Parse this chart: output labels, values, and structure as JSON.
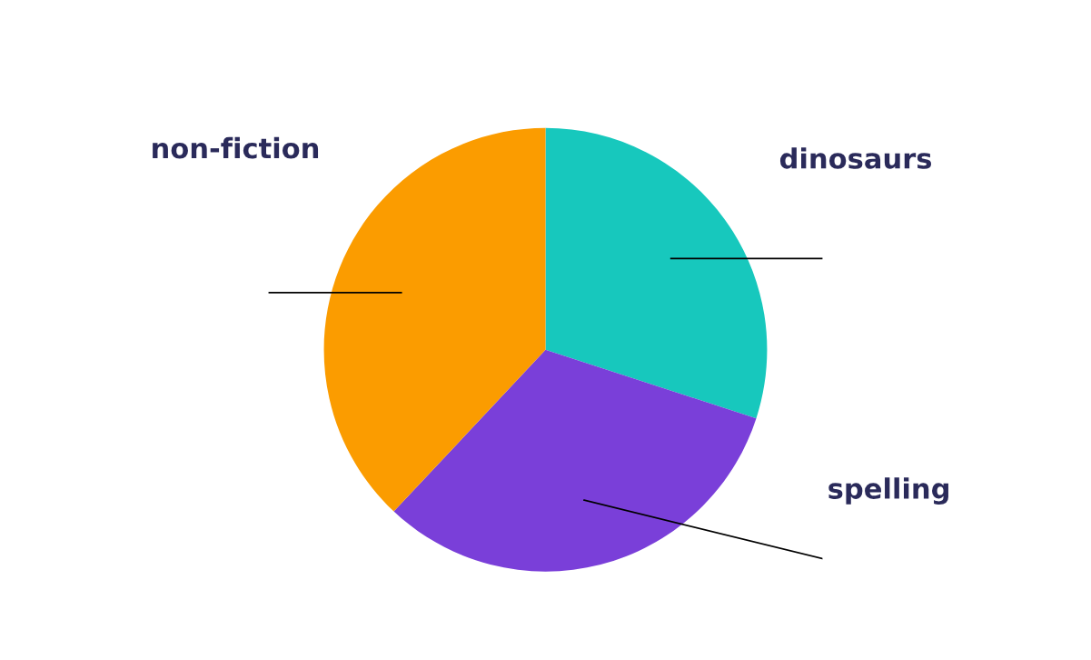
{
  "chart_data": {
    "type": "pie",
    "categories": [
      "dinosaurs",
      "spelling",
      "non-fiction"
    ],
    "values": [
      30,
      32,
      38
    ],
    "colors": [
      "#17c8bd",
      "#7a3fd9",
      "#fb9c00"
    ]
  }
}
